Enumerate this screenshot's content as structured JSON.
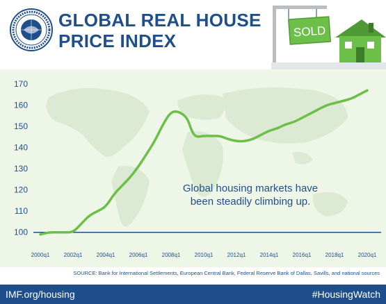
{
  "header": {
    "title_line1": "GLOBAL REAL HOUSE",
    "title_line2": "PRICE INDEX",
    "sign_text": "SOLD"
  },
  "annotation": {
    "line1": "Global housing markets have",
    "line2": "been steadily climbing up."
  },
  "source_text": "SOURCE: Bank for International Settlements, European Central Bank, Federal Reserve Bank of Dallas, Savills, and national sources",
  "footer": {
    "left": "IMF.org/housing",
    "right": "#HousingWatch"
  },
  "colors": {
    "brand_blue": "#1f4e8c",
    "line_green": "#6cc04a",
    "background": "#eef6e8",
    "map": "#dcead3"
  },
  "chart_data": {
    "type": "line",
    "title": "GLOBAL REAL HOUSE PRICE INDEX",
    "xlabel": "",
    "ylabel": "",
    "ylim": [
      95,
      172
    ],
    "yticks": [
      100,
      110,
      120,
      130,
      140,
      150,
      160,
      170
    ],
    "xticks": [
      "2000q1",
      "2002q1",
      "2004q1",
      "2006q1",
      "2008q1",
      "2010q1",
      "2012q1",
      "2014q1",
      "2016q1",
      "2018q1",
      "2020q1"
    ],
    "reference_line": 100,
    "grid": false,
    "series": [
      {
        "name": "",
        "points": [
          [
            "2000q1",
            99
          ],
          [
            "2000q3",
            100
          ],
          [
            "2001q1",
            100
          ],
          [
            "2001q3",
            100
          ],
          [
            "2002q1",
            100
          ],
          [
            "2002q3",
            104
          ],
          [
            "2003q1",
            108
          ],
          [
            "2003q3",
            110
          ],
          [
            "2004q1",
            112
          ],
          [
            "2004q3",
            118
          ],
          [
            "2005q1",
            122
          ],
          [
            "2005q3",
            126
          ],
          [
            "2006q1",
            131
          ],
          [
            "2006q3",
            137
          ],
          [
            "2007q1",
            143
          ],
          [
            "2007q3",
            151
          ],
          [
            "2008q1",
            157
          ],
          [
            "2008q3",
            157
          ],
          [
            "2009q1",
            154
          ],
          [
            "2009q2",
            148
          ],
          [
            "2009q3",
            145
          ],
          [
            "2010q1",
            145.5
          ],
          [
            "2010q3",
            145.5
          ],
          [
            "2011q1",
            145.5
          ],
          [
            "2011q3",
            144
          ],
          [
            "2012q1",
            143
          ],
          [
            "2012q3",
            143
          ],
          [
            "2013q1",
            144
          ],
          [
            "2013q3",
            146
          ],
          [
            "2014q1",
            148
          ],
          [
            "2014q3",
            149
          ],
          [
            "2015q1",
            151
          ],
          [
            "2015q3",
            152
          ],
          [
            "2016q1",
            154
          ],
          [
            "2016q3",
            156
          ],
          [
            "2017q1",
            158
          ],
          [
            "2017q3",
            160
          ],
          [
            "2018q1",
            161
          ],
          [
            "2018q3",
            162
          ],
          [
            "2019q1",
            163
          ],
          [
            "2019q3",
            165
          ],
          [
            "2020q1",
            167
          ]
        ]
      }
    ]
  }
}
